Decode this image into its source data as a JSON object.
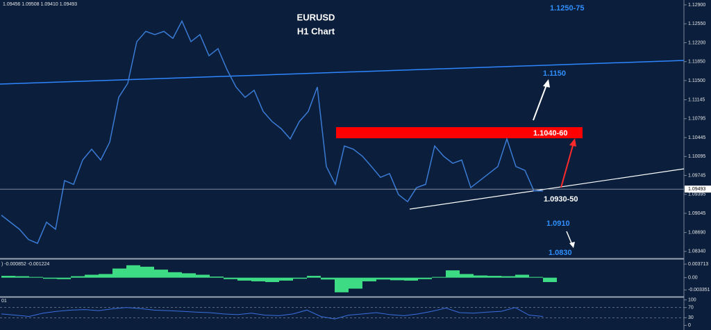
{
  "header": {
    "ohlc": "1.09456 1.09508 1.09410 1.09493"
  },
  "chart_data": [
    {
      "type": "line",
      "title": "EURUSD",
      "subtitle": "H1 Chart",
      "color": "#3a7bd5",
      "categories": [
        null,
        null,
        null,
        null,
        null,
        null,
        null,
        null,
        null,
        null,
        null,
        null,
        null,
        null,
        null,
        null,
        null,
        null,
        null,
        null,
        null,
        null,
        null,
        null,
        null,
        null,
        null,
        null,
        null,
        null,
        null,
        null,
        null,
        null,
        null,
        null,
        null,
        null,
        null,
        null,
        null,
        null,
        null,
        null,
        null,
        null,
        null,
        null,
        null,
        null,
        null,
        null,
        null,
        null,
        null,
        null,
        null,
        null,
        null,
        null,
        null
      ],
      "values": [
        1.0901,
        1.0888,
        1.0875,
        1.0856,
        1.0849,
        1.0888,
        1.0875,
        1.0965,
        1.0958,
        1.1003,
        1.1023,
        1.1003,
        1.1036,
        1.1119,
        1.1145,
        1.1222,
        1.1241,
        1.1235,
        1.1241,
        1.1228,
        1.126,
        1.1222,
        1.1235,
        1.1196,
        1.1209,
        1.117,
        1.1138,
        1.1119,
        1.1132,
        1.1093,
        1.1074,
        1.1061,
        1.1042,
        1.1074,
        1.1093,
        1.1138,
        1.0991,
        1.0958,
        1.1029,
        1.1023,
        1.101,
        1.0991,
        1.0971,
        1.0978,
        1.0939,
        1.0926,
        1.0952,
        1.0958,
        1.1029,
        1.101,
        1.0997,
        1.1003,
        1.0952,
        1.0965,
        1.0978,
        1.0991,
        1.1042,
        1.0991,
        1.0984,
        1.0946,
        1.0946
      ],
      "ylim": [
        1.0821,
        1.1299
      ],
      "yticks": [
        {
          "value": 1.129,
          "label": "1.12900"
        },
        {
          "value": 1.1255,
          "label": "1.12550"
        },
        {
          "value": 1.122,
          "label": "1.12200"
        },
        {
          "value": 1.1185,
          "label": "1.11850"
        },
        {
          "value": 1.115,
          "label": "1.11500"
        },
        1.11145,
        1.10795,
        1.10445,
        1.10095,
        1.09745,
        1.09395,
        1.09045,
        {
          "value": 1.0869,
          "label": "1.08690"
        },
        {
          "value": 1.0834,
          "label": "1.08340"
        }
      ],
      "last_price": 1.09493,
      "annotations": [
        "1.1250-75",
        "1.1150",
        "1.1040-60",
        "1.0930-50",
        "1.0910",
        "1.0830"
      ]
    },
    {
      "type": "bar",
      "label": ") -0.000852 -0.001224",
      "color": "#3ddc84",
      "values": [
        0.0005,
        0.0004,
        0.0002,
        -0.0003,
        -0.0004,
        0.0004,
        0.0008,
        0.001,
        0.0025,
        0.0034,
        0.003,
        0.0022,
        0.0015,
        0.0012,
        0.0008,
        0.0003,
        -0.0004,
        -0.0008,
        -0.001,
        -0.0012,
        -0.0008,
        -0.0003,
        0.0005,
        -0.0005,
        -0.004,
        -0.003,
        -0.001,
        -0.0005,
        -0.0007,
        -0.0008,
        -0.0004,
        0.0002,
        0.002,
        0.001,
        0.0006,
        0.0005,
        0.0004,
        0.0008,
        0.0002,
        -0.0012
      ],
      "ylim": [
        -0.005,
        0.0045
      ],
      "yticks": [
        0.003713,
        {
          "value": 0,
          "label": "0.00"
        },
        -0.003351
      ]
    },
    {
      "type": "line",
      "label": "01",
      "color": "#3b6fe0",
      "values": [
        45,
        40,
        35,
        48,
        55,
        60,
        62,
        58,
        65,
        70,
        66,
        60,
        58,
        55,
        52,
        50,
        45,
        42,
        48,
        40,
        38,
        45,
        60,
        35,
        25,
        40,
        45,
        50,
        42,
        38,
        45,
        55,
        68,
        50,
        48,
        52,
        55,
        70,
        40,
        35
      ],
      "ylim": [
        -10,
        110
      ],
      "yticks": [
        100,
        70,
        30,
        0
      ],
      "grid": [
        70,
        30
      ]
    }
  ]
}
